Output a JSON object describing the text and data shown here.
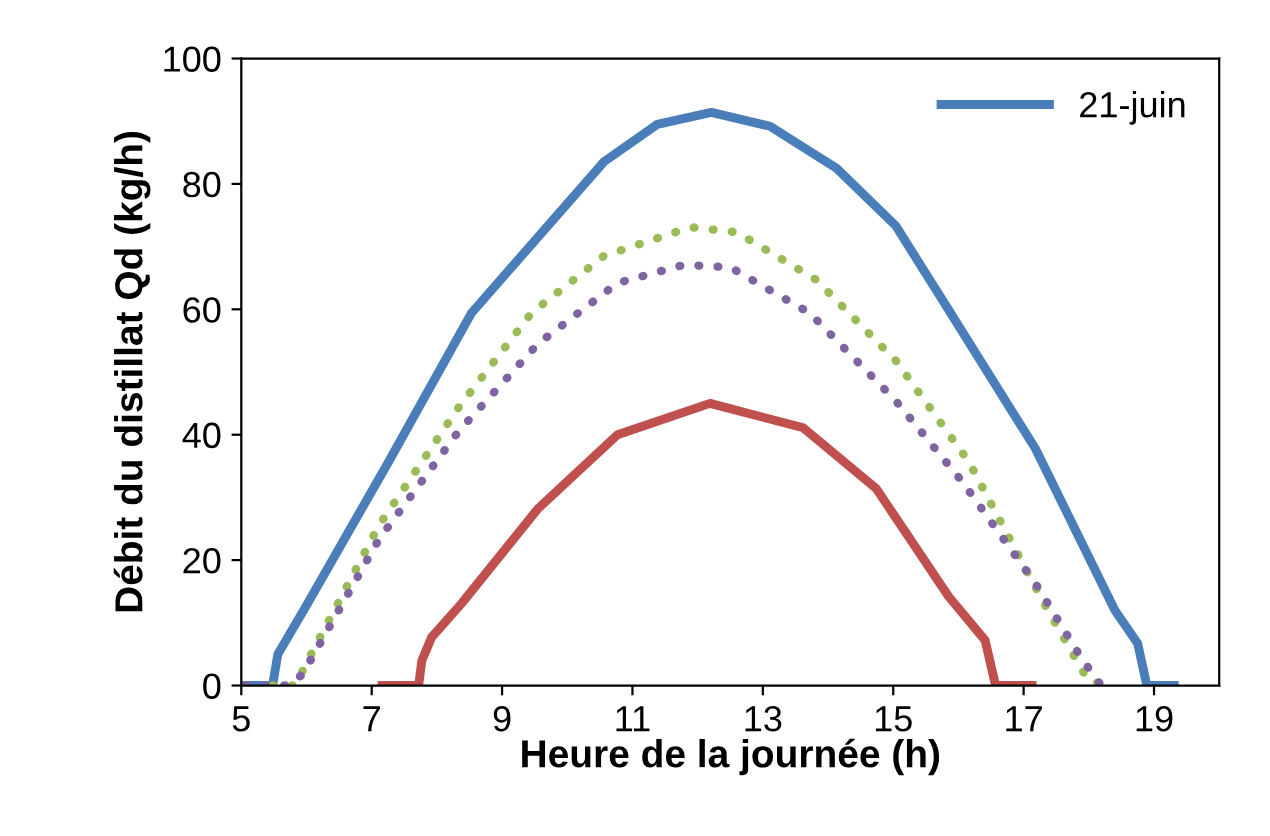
{
  "chart_data": {
    "type": "line",
    "xlabel": "Heure de la journée (h)",
    "ylabel": "Débit du distillat Qd (kg/h)",
    "xlim": [
      5,
      20
    ],
    "xticks": [
      5,
      7,
      9,
      11,
      13,
      15,
      17,
      19
    ],
    "ylim": [
      0,
      100
    ],
    "yticks": [
      0,
      20,
      40,
      60,
      80,
      100
    ],
    "grid": false,
    "legend": "top right",
    "marker": "none",
    "series": [
      {
        "name": "21-juin",
        "color": "#4a7ebb",
        "line_style": "solid",
        "x": [
          5.0,
          5.48,
          5.56,
          5.99,
          7.26,
          8.53,
          10.56,
          11.38,
          12.21,
          13.11,
          14.13,
          15.04,
          15.85,
          17.18,
          18.4,
          18.75,
          18.89,
          19.31
        ],
        "values": [
          0,
          0,
          5,
          12.6,
          35.7,
          59.4,
          83.5,
          89.5,
          91.4,
          89.2,
          82.5,
          73.3,
          59.9,
          37.8,
          12,
          6.7,
          0,
          0
        ]
      },
      {
        "color": "#9bbb59",
        "line_style": "dotted",
        "x": [
          5.48,
          5.83,
          5.99,
          7.11,
          8.33,
          9.45,
          10.56,
          11.89,
          12.6,
          13.82,
          15.04,
          16.16,
          17.28,
          17.99,
          18.3
        ],
        "values": [
          0,
          0,
          3.4,
          25.5,
          44.3,
          59.4,
          68.5,
          73.1,
          72.3,
          64.7,
          51.8,
          35.7,
          13.7,
          0.8,
          0
        ]
      },
      {
        "color": "#8064a2",
        "line_style": "dotted",
        "x": [
          5.07,
          5.73,
          5.94,
          7.11,
          8.33,
          9.55,
          10.77,
          11.79,
          12.5,
          13.72,
          15.04,
          16.06,
          17.18,
          17.89,
          18.19
        ],
        "values": [
          0,
          0,
          1.8,
          23.3,
          40.5,
          54.5,
          64.2,
          67.1,
          66.7,
          59.4,
          45.4,
          32.5,
          16.3,
          4.3,
          0
        ]
      },
      {
        "color": "#c0504d",
        "line_style": "solid",
        "x": [
          7.16,
          7.72,
          7.77,
          7.92,
          8.38,
          9.55,
          10.77,
          12.19,
          13.62,
          14.74,
          15.85,
          16.41,
          16.57,
          17.13
        ],
        "values": [
          0,
          0,
          4,
          7.7,
          13.1,
          28.2,
          40,
          45,
          41.1,
          31.4,
          14.2,
          7.2,
          0,
          0
        ]
      }
    ]
  }
}
